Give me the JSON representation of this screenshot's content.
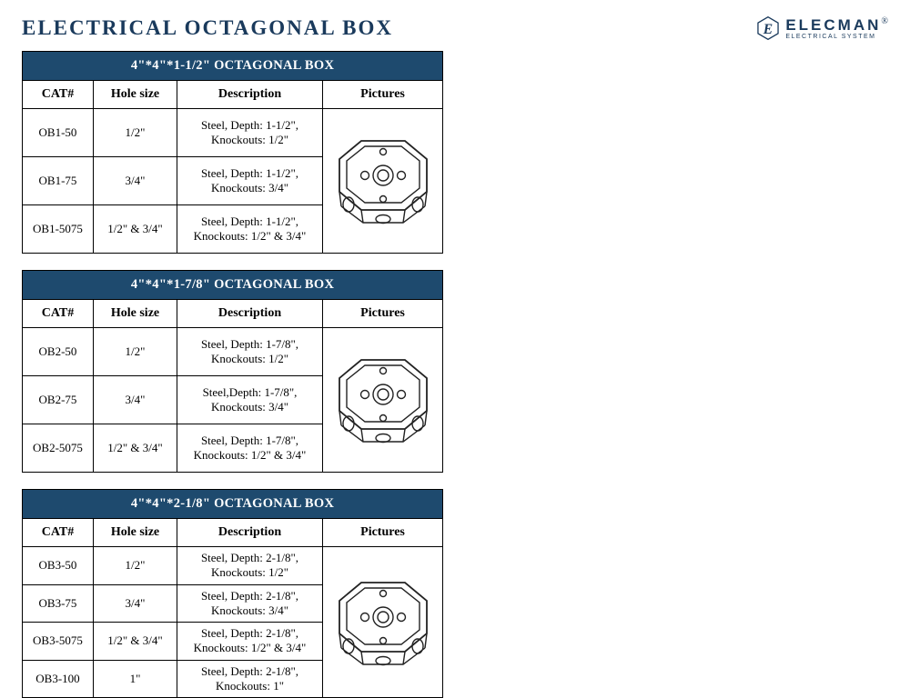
{
  "page": {
    "title": "ELECTRICAL OCTAGONAL BOX"
  },
  "brand": {
    "name": "ELECMAN",
    "tag": "ELECTRICAL SYSTEM",
    "reg": "®"
  },
  "colors": {
    "header_bg": "#1e4a6e",
    "header_text": "#ffffff",
    "border": "#000000",
    "title_text": "#1a3a5c",
    "page_bg": "#ffffff"
  },
  "columns": {
    "cat": "CAT#",
    "hole": "Hole size",
    "desc": "Description",
    "pic": "Pictures"
  },
  "tables": {
    "t1": {
      "caption": "4\"*4\"*1-1/2\" OCTAGONAL BOX",
      "rows": [
        {
          "cat": "OB1-50",
          "hole": "1/2\"",
          "desc": "Steel, Depth: 1-1/2\",\nKnockouts: 1/2\""
        },
        {
          "cat": "OB1-75",
          "hole": "3/4\"",
          "desc": "Steel, Depth: 1-1/2\",\nKnockouts: 3/4\""
        },
        {
          "cat": "OB1-5075",
          "hole": "1/2\" & 3/4\"",
          "desc": "Steel, Depth: 1-1/2\",\nKnockouts: 1/2\" & 3/4\""
        }
      ]
    },
    "t2": {
      "caption": "4\"*4\"*1-7/8\" OCTAGONAL BOX",
      "rows": [
        {
          "cat": "OB2-50",
          "hole": "1/2\"",
          "desc": "Steel, Depth: 1-7/8\",\nKnockouts: 1/2\""
        },
        {
          "cat": "OB2-75",
          "hole": "3/4\"",
          "desc": "Steel,Depth: 1-7/8\",\nKnockouts: 3/4\""
        },
        {
          "cat": "OB2-5075",
          "hole": "1/2\" & 3/4\"",
          "desc": "Steel, Depth: 1-7/8\",\nKnockouts: 1/2\" & 3/4\""
        }
      ]
    },
    "t3": {
      "caption": "4\"*4\"*2-1/8\" OCTAGONAL BOX",
      "rows": [
        {
          "cat": "OB3-50",
          "hole": "1/2\"",
          "desc": "Steel, Depth: 2-1/8\",\nKnockouts: 1/2\""
        },
        {
          "cat": "OB3-75",
          "hole": "3/4\"",
          "desc": "Steel, Depth: 2-1/8\",\nKnockouts: 3/4\""
        },
        {
          "cat": "OB3-5075",
          "hole": "1/2\" & 3/4\"",
          "desc": "Steel, Depth: 2-1/8\",\nKnockouts: 1/2\" & 3/4\""
        },
        {
          "cat": "OB3-100",
          "hole": "1\"",
          "desc": "Steel, Depth: 2-1/8\",\nKnockouts: 1\""
        }
      ]
    }
  }
}
